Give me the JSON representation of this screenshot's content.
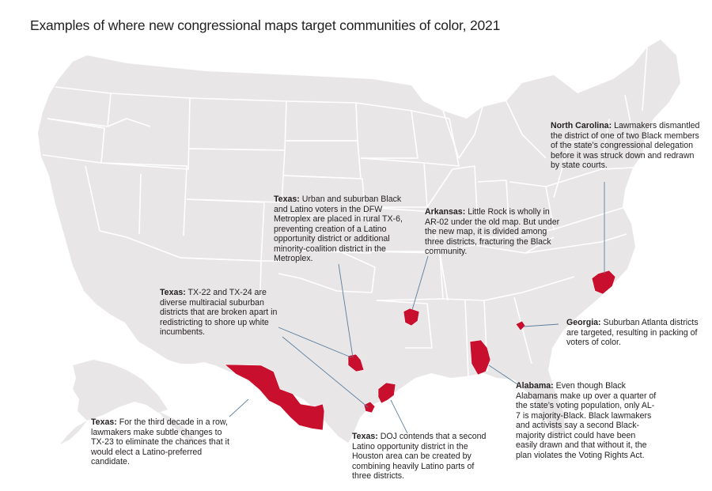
{
  "title": "Examples of where new congressional maps target communities of color, 2021",
  "colors": {
    "background": "#ffffff",
    "land": "#e8e6e6",
    "boundary": "#ffffff",
    "highlight": "#c8102e",
    "leader": "#5b7fa0",
    "text": "#231f20"
  },
  "annotations": {
    "north_carolina": {
      "state": "North Carolina:",
      "text": "Lawmakers dismantled the district of one of two Black members of the state’s congressional delegation before it was struck down and redrawn by state courts."
    },
    "texas_dfw": {
      "state": "Texas:",
      "text": "Urban and suburban Black and Latino voters in the DFW Metroplex are placed in rural TX-6, preventing creation of a Latino opportunity district or additional minority-coalition district in the Metroplex."
    },
    "arkansas": {
      "state": "Arkansas:",
      "text": "Little Rock is wholly in AR-02 under the old map. But under the new map, it is divided among three districts, fracturing the Black community."
    },
    "texas_houston_suburbs": {
      "state": "Texas:",
      "text": "TX-22 and TX-24 are diverse multiracial suburban districts that are broken apart in redistricting to shore up white incumbents."
    },
    "georgia": {
      "state": "Georgia:",
      "text": "Suburban Atlanta districts are targeted, resulting in packing of voters of color."
    },
    "alabama": {
      "state": "Alabama:",
      "text": "Even though Black Alabamans make up over a quarter of the state’s voting population, only AL-7 is majority-Black. Black lawmakers and activists say a second Black-majority district could have been easily drawn and that without it, the plan violates the Voting Rights Act."
    },
    "texas_tx23": {
      "state": "Texas:",
      "text": "For the third decade in a row, lawmakers make subtle changes to TX-23 to eliminate the chances that it would elect a Latino-preferred candidate."
    },
    "texas_houston_doj": {
      "state": "Texas:",
      "text": "DOJ contends that a second Latino opportunity district in the Houston area can be created by combining heavily Latino parts of three districts."
    }
  }
}
